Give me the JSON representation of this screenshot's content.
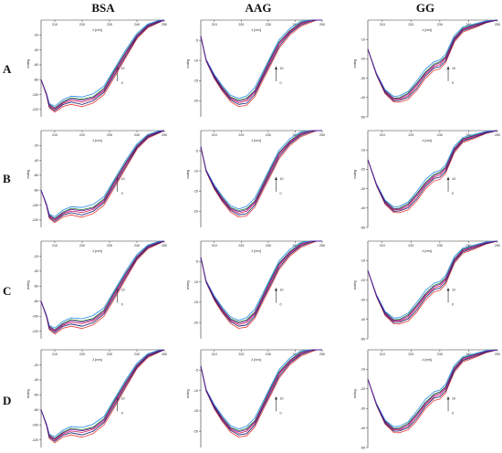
{
  "figure": {
    "columns": [
      "BSA",
      "AAG",
      "GG"
    ],
    "rows": [
      "A",
      "B",
      "C",
      "D"
    ],
    "series_colors": [
      "#d81b60",
      "#e53935",
      "#2e7d32",
      "#1e88e5",
      "#0d1b6e",
      "#6a1b9a"
    ]
  },
  "chart_data": [
    {
      "id": "A-BSA",
      "type": "line",
      "row": "A",
      "panel": "BSA",
      "xlabel": "λ [nm]",
      "ylabel": "mdeg",
      "xticks": [
        "210",
        "220",
        "230",
        "240",
        "250"
      ],
      "yticks": [
        "-20",
        "-40",
        "-60",
        "-80",
        "-100",
        "-120"
      ],
      "xlim": [
        205,
        250
      ],
      "ylim": [
        -130,
        0
      ],
      "scale_label_top": "10",
      "scale_label_bottom": "0",
      "series": [
        {
          "x": [
            205,
            207,
            208,
            210,
            213,
            216,
            220,
            224,
            228,
            232,
            236,
            240,
            244,
            248,
            250
          ],
          "y": [
            -80,
            -100,
            -115,
            -120,
            -112,
            -108,
            -110,
            -106,
            -95,
            -70,
            -45,
            -22,
            -8,
            -2,
            0
          ]
        }
      ]
    },
    {
      "id": "A-AAG",
      "type": "line",
      "row": "A",
      "panel": "AAG",
      "xlabel": "λ [nm]",
      "ylabel": "mdeg",
      "xticks": [
        "210",
        "220",
        "230",
        "240",
        "250"
      ],
      "yticks": [
        "-5",
        "-10",
        "-15",
        "-20",
        "-25"
      ],
      "xlim": [
        205,
        250
      ],
      "ylim": [
        -24,
        0
      ],
      "scale_label_top": "10",
      "scale_label_bottom": "0",
      "series": [
        {
          "x": [
            205,
            207,
            210,
            213,
            216,
            219,
            222,
            225,
            228,
            231,
            234,
            238,
            242,
            246,
            248,
            250
          ],
          "y": [
            -4,
            -10,
            -14,
            -17,
            -19.5,
            -20.5,
            -20,
            -18,
            -14,
            -10,
            -6,
            -3,
            -1,
            0,
            0.3,
            0.6
          ]
        }
      ]
    },
    {
      "id": "A-GG",
      "type": "line",
      "row": "A",
      "panel": "GG",
      "xlabel": "λ [nm]",
      "ylabel": "mdeg",
      "xticks": [
        "210",
        "220",
        "230",
        "240",
        "250"
      ],
      "yticks": [
        "-10",
        "-20",
        "-30",
        "-40",
        "-50"
      ],
      "xlim": [
        205,
        250
      ],
      "ylim": [
        -50,
        0
      ],
      "scale_label_top": "10",
      "scale_label_bottom": "0",
      "series": [
        {
          "x": [
            205,
            208,
            211,
            214,
            216,
            219,
            222,
            225,
            228,
            230,
            232,
            235,
            238,
            242,
            246,
            250
          ],
          "y": [
            -15,
            -28,
            -37,
            -41,
            -41,
            -39,
            -34,
            -28,
            -24,
            -23,
            -20,
            -10,
            -5,
            -3,
            -1,
            0
          ]
        }
      ]
    },
    {
      "id": "B-BSA",
      "type": "line",
      "row": "B",
      "panel": "BSA",
      "xlabel": "λ [nm]",
      "ylabel": "mdeg",
      "xticks": [
        "210",
        "220",
        "230",
        "240",
        "250"
      ],
      "yticks": [
        "-20",
        "-40",
        "-60",
        "-80",
        "-100",
        "-120"
      ],
      "xlim": [
        205,
        250
      ],
      "ylim": [
        -130,
        0
      ],
      "scale_label_top": "10",
      "scale_label_bottom": "0",
      "series": [
        {
          "x": [
            205,
            207,
            208,
            210,
            213,
            216,
            220,
            224,
            228,
            232,
            236,
            240,
            244,
            248,
            250
          ],
          "y": [
            -80,
            -100,
            -115,
            -120,
            -112,
            -108,
            -110,
            -106,
            -95,
            -70,
            -45,
            -22,
            -8,
            -2,
            0
          ]
        }
      ]
    },
    {
      "id": "B-AAG",
      "type": "line",
      "row": "B",
      "panel": "AAG",
      "xlabel": "λ [nm]",
      "ylabel": "mdeg",
      "xticks": [
        "210",
        "220",
        "230",
        "240",
        "250"
      ],
      "yticks": [
        "-5",
        "-10",
        "-15",
        "-20",
        "-25"
      ],
      "xlim": [
        205,
        250
      ],
      "ylim": [
        -24,
        0
      ],
      "scale_label_top": "10",
      "scale_label_bottom": "0",
      "series": [
        {
          "x": [
            205,
            207,
            210,
            213,
            216,
            219,
            222,
            225,
            228,
            231,
            234,
            238,
            242,
            246,
            248,
            250
          ],
          "y": [
            -4,
            -10,
            -14,
            -17,
            -19.5,
            -20.5,
            -20,
            -18,
            -14,
            -10,
            -6,
            -3,
            -1,
            0,
            0.3,
            0.6
          ]
        }
      ]
    },
    {
      "id": "B-GG",
      "type": "line",
      "row": "B",
      "panel": "GG",
      "xlabel": "λ [nm]",
      "ylabel": "mdeg",
      "xticks": [
        "210",
        "220",
        "230",
        "240",
        "250"
      ],
      "yticks": [
        "-10",
        "-20",
        "-30",
        "-40",
        "-50"
      ],
      "xlim": [
        205,
        250
      ],
      "ylim": [
        -50,
        0
      ],
      "scale_label_top": "10",
      "scale_label_bottom": "0",
      "series": [
        {
          "x": [
            205,
            208,
            211,
            214,
            216,
            219,
            222,
            225,
            228,
            230,
            232,
            235,
            238,
            242,
            246,
            250
          ],
          "y": [
            -15,
            -28,
            -37,
            -41,
            -41,
            -39,
            -34,
            -28,
            -24,
            -23,
            -20,
            -10,
            -5,
            -3,
            -1,
            0
          ]
        }
      ]
    },
    {
      "id": "C-BSA",
      "type": "line",
      "row": "C",
      "panel": "BSA",
      "xlabel": "λ [nm]",
      "ylabel": "mdeg",
      "xticks": [
        "210",
        "220",
        "230",
        "240",
        "250"
      ],
      "yticks": [
        "-20",
        "-40",
        "-60",
        "-80",
        "-100",
        "-120"
      ],
      "xlim": [
        205,
        250
      ],
      "ylim": [
        -130,
        0
      ],
      "scale_label_top": "10",
      "scale_label_bottom": "0",
      "series": [
        {
          "x": [
            205,
            207,
            208,
            210,
            213,
            216,
            220,
            224,
            228,
            232,
            236,
            240,
            244,
            248,
            250
          ],
          "y": [
            -80,
            -100,
            -115,
            -120,
            -112,
            -108,
            -110,
            -106,
            -95,
            -70,
            -45,
            -22,
            -8,
            -2,
            0
          ]
        }
      ]
    },
    {
      "id": "C-AAG",
      "type": "line",
      "row": "C",
      "panel": "AAG",
      "xlabel": "λ [nm]",
      "ylabel": "mdeg",
      "xticks": [
        "210",
        "220",
        "230",
        "240",
        "250"
      ],
      "yticks": [
        "-5",
        "-10",
        "-15",
        "-20",
        "-25"
      ],
      "xlim": [
        205,
        250
      ],
      "ylim": [
        -24,
        0
      ],
      "scale_label_top": "10",
      "scale_label_bottom": "0",
      "series": [
        {
          "x": [
            205,
            207,
            210,
            213,
            216,
            219,
            222,
            225,
            228,
            231,
            234,
            238,
            242,
            246,
            248,
            250
          ],
          "y": [
            -4,
            -10,
            -14,
            -17,
            -19.5,
            -20.5,
            -20,
            -18,
            -14,
            -10,
            -6,
            -3,
            -1,
            0,
            0.3,
            0.6
          ]
        }
      ]
    },
    {
      "id": "C-GG",
      "type": "line",
      "row": "C",
      "panel": "GG",
      "xlabel": "λ [nm]",
      "ylabel": "mdeg",
      "xticks": [
        "210",
        "220",
        "230",
        "240",
        "250"
      ],
      "yticks": [
        "-10",
        "-20",
        "-30",
        "-40",
        "-50"
      ],
      "xlim": [
        205,
        250
      ],
      "ylim": [
        -50,
        0
      ],
      "scale_label_top": "10",
      "scale_label_bottom": "0",
      "series": [
        {
          "x": [
            205,
            208,
            211,
            214,
            216,
            219,
            222,
            225,
            228,
            230,
            232,
            235,
            238,
            242,
            246,
            250
          ],
          "y": [
            -15,
            -28,
            -37,
            -41,
            -41,
            -39,
            -34,
            -28,
            -24,
            -23,
            -20,
            -10,
            -5,
            -3,
            -1,
            0
          ]
        }
      ]
    },
    {
      "id": "D-BSA",
      "type": "line",
      "row": "D",
      "panel": "BSA",
      "xlabel": "λ [nm]",
      "ylabel": "mdeg",
      "xticks": [
        "210",
        "220",
        "230",
        "240",
        "250"
      ],
      "yticks": [
        "-20",
        "-40",
        "-60",
        "-80",
        "-100",
        "-120"
      ],
      "xlim": [
        205,
        250
      ],
      "ylim": [
        -130,
        0
      ],
      "scale_label_top": "10",
      "scale_label_bottom": "0",
      "series": [
        {
          "x": [
            205,
            207,
            208,
            210,
            213,
            216,
            220,
            224,
            228,
            232,
            236,
            240,
            244,
            248,
            250
          ],
          "y": [
            -80,
            -100,
            -115,
            -120,
            -112,
            -108,
            -110,
            -106,
            -95,
            -70,
            -45,
            -22,
            -8,
            -2,
            0
          ]
        }
      ]
    },
    {
      "id": "D-AAG",
      "type": "line",
      "row": "D",
      "panel": "AAG",
      "xlabel": "λ [nm]",
      "ylabel": "mdeg",
      "xticks": [
        "210",
        "220",
        "230",
        "240",
        "250"
      ],
      "yticks": [
        "-5",
        "-10",
        "-15",
        "-20",
        "-25"
      ],
      "xlim": [
        205,
        250
      ],
      "ylim": [
        -24,
        0
      ],
      "scale_label_top": "10",
      "scale_label_bottom": "0",
      "series": [
        {
          "x": [
            205,
            207,
            210,
            213,
            216,
            219,
            222,
            225,
            228,
            231,
            234,
            238,
            242,
            246,
            248,
            250
          ],
          "y": [
            -4,
            -10,
            -14,
            -17,
            -19.5,
            -20.5,
            -20,
            -18,
            -14,
            -10,
            -6,
            -3,
            -1,
            0,
            0.3,
            0.6
          ]
        }
      ]
    },
    {
      "id": "D-GG",
      "type": "line",
      "row": "D",
      "panel": "GG",
      "xlabel": "λ [nm]",
      "ylabel": "mdeg",
      "xticks": [
        "210",
        "220",
        "230",
        "240",
        "250"
      ],
      "yticks": [
        "-10",
        "-20",
        "-30",
        "-40",
        "-50"
      ],
      "xlim": [
        205,
        250
      ],
      "ylim": [
        -50,
        0
      ],
      "scale_label_top": "10",
      "scale_label_bottom": "0",
      "series": [
        {
          "x": [
            205,
            208,
            211,
            214,
            216,
            219,
            222,
            225,
            228,
            230,
            232,
            235,
            238,
            242,
            246,
            250
          ],
          "y": [
            -15,
            -28,
            -37,
            -41,
            -41,
            -39,
            -34,
            -28,
            -24,
            -23,
            -20,
            -10,
            -5,
            -3,
            -1,
            0
          ]
        }
      ]
    }
  ]
}
